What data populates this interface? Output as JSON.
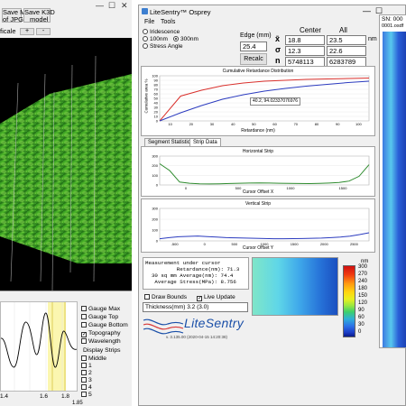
{
  "left_window": {
    "toolbar": {
      "save_movie": "Save Movie",
      "of_jpgs": "of JPGs",
      "save_k3d": "Save K3D",
      "model": "model",
      "ficale": "ficale",
      "plus": "+",
      "minus": "-"
    },
    "window_controls": {
      "minimize": "—",
      "maximize": "☐",
      "close": "✕"
    },
    "graph_ticks": [
      "1.4",
      "1.6",
      "1.8"
    ],
    "graph_value": "1.85",
    "checkboxes": [
      {
        "label": "Gauge Max",
        "checked": false
      },
      {
        "label": "Gauge Top",
        "checked": false
      },
      {
        "label": "Gauge Bottom",
        "checked": false
      },
      {
        "label": "Topography",
        "checked": true
      },
      {
        "label": "Wavelength",
        "checked": false
      }
    ],
    "display_strips_label": "Display Strips",
    "strips": [
      {
        "label": "Middle",
        "checked": false
      },
      {
        "label": "1",
        "checked": false
      },
      {
        "label": "2",
        "checked": false
      },
      {
        "label": "3",
        "checked": false
      },
      {
        "label": "4",
        "checked": false
      },
      {
        "label": "5",
        "checked": false
      }
    ]
  },
  "right_window": {
    "title": "LiteSentry™ Osprey",
    "window_controls": {
      "minimize": "—",
      "maximize": "☐"
    },
    "menu": [
      "File",
      "Tools"
    ],
    "radios": [
      {
        "label": "Iridescence",
        "on": false
      },
      {
        "label": "100nm",
        "on": false
      },
      {
        "label": "300nm",
        "on": true
      },
      {
        "label": "Stress Angle",
        "on": false
      }
    ],
    "edge_label": "Edge (mm)",
    "edge_value": "25.4",
    "recalc_label": "Recalc",
    "col_center": "Center",
    "col_all": "All",
    "rows": [
      {
        "symbol": "x̄",
        "center": "18.8",
        "all": "23.5",
        "unit": "nm"
      },
      {
        "symbol": "σ",
        "center": "12.3",
        "all": "22.6",
        "unit": ""
      },
      {
        "symbol": "n",
        "center": "5748113",
        "all": "6283789",
        "unit": ""
      }
    ],
    "dist_title": "Cumulative Retardance Distribution",
    "dist_tooltip": "40.2, 94.02337076976",
    "dist_xlabel": "Retardance (nm)",
    "dist_ylabel": "Cumulative area %",
    "tabs": [
      "Segment Statistics",
      "Strip Data"
    ],
    "h_strip_title": "Horizontal Strip",
    "h_strip_xlabel": "Cursor Offset X",
    "v_strip_title": "Vertical Strip",
    "v_strip_xlabel": "Cursor Offset Y",
    "measurement": {
      "line1": "Measurement under cursor",
      "line2": "          Retardance(nm): 71.3",
      "line3": "  30 sq mm Average(nm): 74.4",
      "line4": "   Average Stress(MPa): 8.756"
    },
    "colorbar_unit": "nm",
    "colorbar_labels": [
      "300",
      "270",
      "240",
      "180",
      "150",
      "120",
      "90",
      "60",
      "30",
      "0"
    ],
    "draw_bounds_label": "Draw Bounds",
    "live_update_label": "Live Update",
    "thickness_label": "Thickness(mm)",
    "thickness_value": "3.2 (3.0)",
    "logo_text": "LiteSentry",
    "version": "v. 3.135.00 (2020-04-15 14:20:38)",
    "sn_label": "SN: 000",
    "sn_file": "0001.osdf"
  },
  "chart_data": [
    {
      "type": "line",
      "title": "Cumulative Retardance Distribution",
      "xlabel": "Retardance (nm)",
      "ylabel": "Cumulative area %",
      "x": [
        0,
        10,
        20,
        30,
        40,
        50,
        60,
        70,
        80,
        90,
        100
      ],
      "xticks": [
        "10",
        "20",
        "30",
        "40",
        "50",
        "60",
        "70",
        "80",
        "90",
        "100"
      ],
      "yticks": [
        "100",
        "90",
        "80",
        "70",
        "60",
        "50",
        "40",
        "30",
        "20",
        "10",
        "0"
      ],
      "ylim": [
        0,
        100
      ],
      "series": [
        {
          "color": "#d9302c",
          "values": [
            0,
            55,
            68,
            78,
            84,
            88,
            90,
            92,
            93,
            94,
            95
          ]
        },
        {
          "color": "#2b3bbf",
          "values": [
            0,
            18,
            34,
            48,
            58,
            66,
            72,
            77,
            81,
            85,
            88
          ]
        }
      ]
    },
    {
      "type": "line",
      "title": "Horizontal Strip",
      "xlabel": "Cursor Offset X",
      "xticks": [
        "0",
        "500",
        "1000",
        "1500"
      ],
      "yticks": [
        "300",
        "200",
        "100",
        "0"
      ],
      "ylim": [
        0,
        300
      ],
      "series": [
        {
          "color": "#2e8b2e",
          "values": [
            220,
            150,
            30,
            18,
            12,
            10,
            12,
            15,
            18,
            20,
            22,
            20,
            18,
            16,
            15,
            14,
            16,
            20,
            25,
            40,
            90,
            210
          ]
        }
      ]
    },
    {
      "type": "line",
      "title": "Vertical Strip",
      "xlabel": "Cursor Offset Y",
      "xticks": [
        "-500",
        "0",
        "500",
        "1000",
        "1500",
        "2000",
        "2500"
      ],
      "yticks": [
        "300",
        "200",
        "100",
        "0"
      ],
      "ylim": [
        0,
        300
      ],
      "series": [
        {
          "color": "#2b3bbf",
          "values": [
            20,
            30,
            38,
            42,
            45,
            40,
            35,
            30,
            28,
            26,
            24,
            22,
            20,
            20,
            21,
            22,
            24,
            26,
            30,
            36,
            44,
            58,
            75
          ]
        }
      ]
    }
  ]
}
